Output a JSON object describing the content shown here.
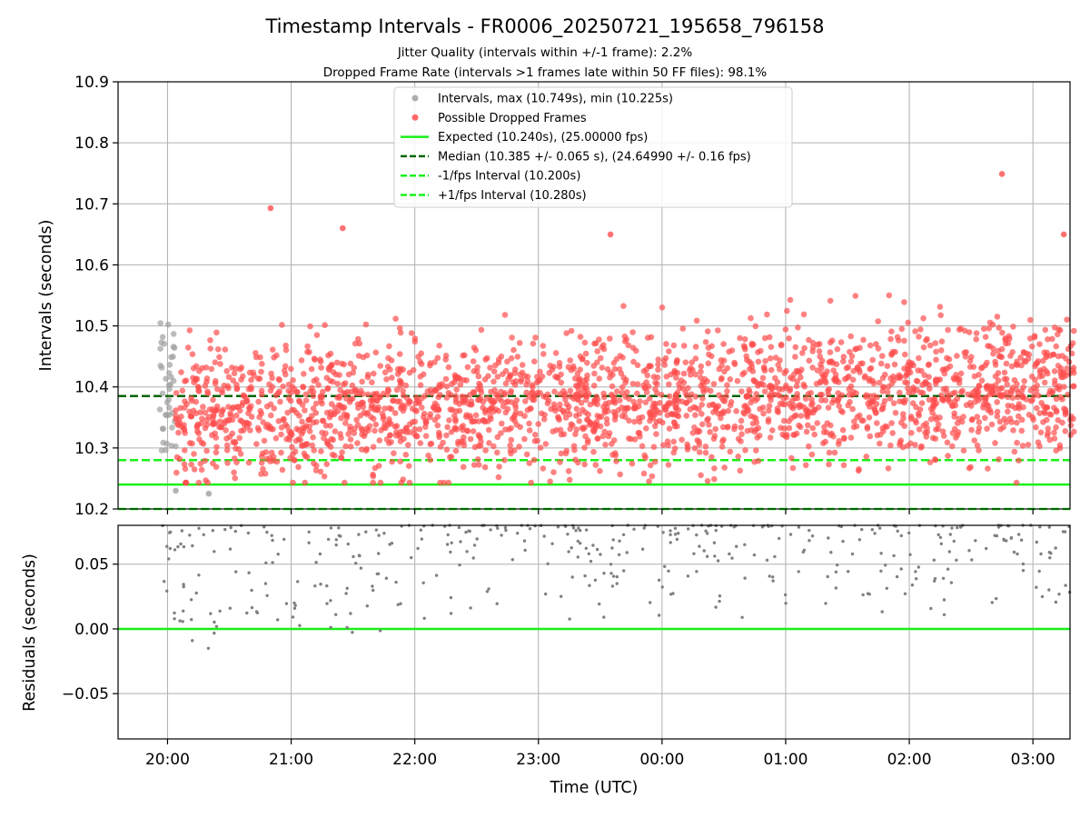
{
  "chart_data": [
    {
      "type": "scatter",
      "title": "Timestamp Intervals - FR0006_20250721_195658_796158",
      "subtitle_1": "Jitter Quality (intervals within +/-1 frame): 2.2%",
      "subtitle_2": "Dropped Frame Rate (intervals >1 frames late within 50 FF files): 98.1%",
      "ylabel": "Intervals (seconds)",
      "ylim": [
        10.2,
        10.9
      ],
      "y_ticks": [
        "10.2",
        "10.3",
        "10.4",
        "10.5",
        "10.6",
        "10.7",
        "10.8",
        "10.9"
      ],
      "y_tick_values": [
        10.2,
        10.3,
        10.4,
        10.5,
        10.6,
        10.7,
        10.8,
        10.9
      ],
      "x_range_hours": [
        19.6,
        27.3
      ],
      "grid": true,
      "legend_position": "top-center",
      "legend": [
        {
          "label": "Intervals, max (10.749s), min (10.225s)",
          "kind": "marker",
          "color": "#a0a0a0"
        },
        {
          "label": "Possible Dropped Frames",
          "kind": "marker",
          "color": "#ff4d4d"
        },
        {
          "label": "Expected (10.240s), (25.00000 fps)",
          "kind": "solid",
          "color": "#18f018"
        },
        {
          "label": "Median (10.385 +/- 0.065 s), (24.64990 +/- 0.16 fps)",
          "kind": "dashed",
          "color": "#006400"
        },
        {
          "label": "-1/fps Interval (10.200s)",
          "kind": "dashed",
          "color": "#18f018"
        },
        {
          "label": "+1/fps Interval (10.280s)",
          "kind": "dashed",
          "color": "#18f018"
        }
      ],
      "reference_lines": {
        "expected": 10.24,
        "median": 10.385,
        "minus_one_fps": 10.2,
        "plus_one_fps": 10.28
      },
      "series": [
        {
          "name": "Intervals, max (10.749s), min (10.225s)",
          "color": "#a0a0a0",
          "time_range": [
            "19:56",
            "20:04"
          ],
          "count": 40,
          "value_range": [
            10.225,
            10.505
          ]
        },
        {
          "name": "Possible Dropped Frames",
          "color": "#ff4d4d",
          "time_range": [
            "20:04",
            "03:20"
          ],
          "count": 2400,
          "median": 10.385,
          "spread": 0.065,
          "value_range": [
            10.24,
            10.749
          ]
        }
      ],
      "highlight_points": [
        {
          "time": "20:04",
          "value": 10.23
        },
        {
          "time": "20:20",
          "value": 10.225
        },
        {
          "time": "20:50",
          "value": 10.693
        },
        {
          "time": "21:25",
          "value": 10.66
        },
        {
          "time": "23:35",
          "value": 10.65
        },
        {
          "time": "02:45",
          "value": 10.749
        },
        {
          "time": "03:15",
          "value": 10.65
        }
      ]
    },
    {
      "type": "scatter",
      "ylabel": "Residuals (seconds)",
      "xlabel": "Time (UTC)",
      "ylim": [
        -0.085,
        0.08
      ],
      "y_ticks": [
        "−0.05",
        "0.00",
        "0.05"
      ],
      "y_tick_values": [
        -0.05,
        0.0,
        0.05
      ],
      "x_ticks": [
        "20:00",
        "21:00",
        "22:00",
        "23:00",
        "00:00",
        "01:00",
        "02:00",
        "03:00"
      ],
      "x_tick_values": [
        20,
        21,
        22,
        23,
        24,
        25,
        26,
        27
      ],
      "x_range_hours": [
        19.6,
        27.3
      ],
      "grid": true,
      "reference_line": 0.0,
      "series": [
        {
          "name": "",
          "color": "#808080",
          "count": 400,
          "value_range": [
            -0.015,
            0.08
          ]
        }
      ]
    }
  ]
}
